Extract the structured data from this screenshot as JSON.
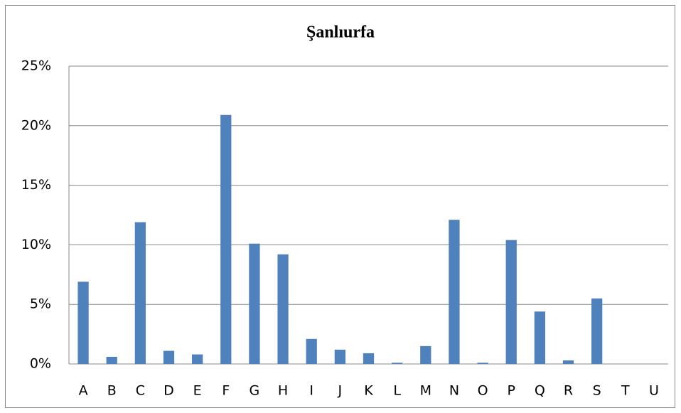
{
  "chart_data": {
    "type": "bar",
    "title": "Şanlıurfa",
    "categories": [
      "A",
      "B",
      "C",
      "D",
      "E",
      "F",
      "G",
      "H",
      "I",
      "J",
      "K",
      "L",
      "M",
      "N",
      "O",
      "P",
      "Q",
      "R",
      "S",
      "T",
      "U"
    ],
    "values": [
      6.9,
      0.6,
      11.9,
      1.1,
      0.8,
      20.9,
      10.1,
      9.2,
      2.1,
      1.2,
      0.9,
      0.1,
      1.5,
      12.1,
      0.1,
      10.4,
      4.4,
      0.3,
      5.5,
      0,
      0
    ],
    "color": "#4f81bd",
    "ylim": [
      0,
      25
    ],
    "yticks": [
      {
        "value": 0,
        "label": "0%"
      },
      {
        "value": 5,
        "label": "5%"
      },
      {
        "value": 10,
        "label": "10%"
      },
      {
        "value": 15,
        "label": "15%"
      },
      {
        "value": 20,
        "label": "20%"
      },
      {
        "value": 25,
        "label": "25%"
      }
    ],
    "grid": true
  }
}
